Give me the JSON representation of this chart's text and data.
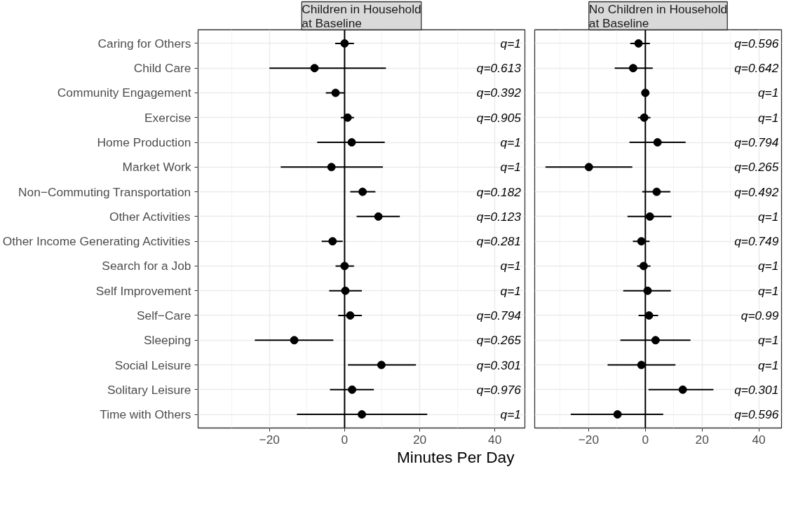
{
  "chart_data": [
    {
      "type": "scatter",
      "title": "Children in Household\nat Baseline",
      "xlabel": "Minutes Per Day",
      "orientation": "horizontal",
      "marker": "circle",
      "grid": true,
      "categories": [
        "Caring for Others",
        "Child Care",
        "Community Engagement",
        "Exercise",
        "Home Production",
        "Market Work",
        "Non−Commuting Transportation",
        "Other Activities",
        "Other Income Generating Activities",
        "Search for a Job",
        "Self Improvement",
        "Self−Care",
        "Sleeping",
        "Social Leisure",
        "Solitary Leisure",
        "Time with Others"
      ],
      "series": [
        {
          "color": "#000000",
          "values": [
            0,
            -8,
            -2.4,
            0.8,
            1.9,
            -3.5,
            4.8,
            9,
            -3.2,
            0,
            0.2,
            1.5,
            -13.4,
            9.8,
            2,
            4.6
          ],
          "errors": [
            [
              -2.5,
              2.5
            ],
            [
              -20,
              11
            ],
            [
              -5,
              0
            ],
            [
              -1,
              2.5
            ],
            [
              -7.3,
              10.7
            ],
            [
              -17,
              10.2
            ],
            [
              1.5,
              8.2
            ],
            [
              3.2,
              14.7
            ],
            [
              -6.1,
              -0.5
            ],
            [
              -2.4,
              2.5
            ],
            [
              -4.1,
              4.6
            ],
            [
              -1.7,
              4.6
            ],
            [
              -23.9,
              -3
            ],
            [
              0.9,
              19
            ],
            [
              -3.9,
              7.8
            ],
            [
              -12.7,
              22
            ]
          ]
        }
      ],
      "xlim": [
        -39,
        48
      ],
      "xticks": [
        {
          "value": -20,
          "label": "−20"
        },
        0,
        20,
        40
      ],
      "ref_lines": [
        {
          "axis": "x",
          "value": 0,
          "label": null,
          "color": "#000000"
        }
      ],
      "annotations": [
        "q=1",
        "q=0.613",
        "q=0.392",
        "q=0.905",
        "q=1",
        "q=1",
        "q=0.182",
        "q=0.123",
        "q=0.281",
        "q=1",
        "q=1",
        "q=0.794",
        "q=0.265",
        "q=0.301",
        "q=0.976",
        "q=1"
      ]
    },
    {
      "type": "scatter",
      "title": "No Children in Household\nat Baseline",
      "orientation": "horizontal",
      "marker": "circle",
      "grid": true,
      "tick_labels": "x",
      "categories": [
        null,
        null,
        null,
        null,
        null,
        null,
        null,
        null,
        null,
        null,
        null,
        null,
        null,
        null,
        null,
        null
      ],
      "series": [
        {
          "color": "#000000",
          "values": [
            -2.4,
            -4.3,
            0,
            -0.4,
            4.3,
            -19.9,
            4,
            1.6,
            -1.4,
            -0.6,
            0.8,
            1.3,
            3.6,
            -1.4,
            13.2,
            -9.8
          ],
          "errors": [
            [
              -5.3,
              1.6
            ],
            [
              -10.8,
              2.6
            ],
            [
              -1,
              1
            ],
            [
              -2.6,
              1.8
            ],
            [
              -5.6,
              14.2
            ],
            [
              -35.2,
              -4.6
            ],
            [
              -1.1,
              8.8
            ],
            [
              -6.3,
              9.2
            ],
            [
              -4.4,
              1.5
            ],
            [
              -2.9,
              1.8
            ],
            [
              -7.8,
              9
            ],
            [
              -2.4,
              4.5
            ],
            [
              -8.8,
              15.9
            ],
            [
              -13.3,
              10.6
            ],
            [
              1.1,
              24
            ],
            [
              -26.3,
              6.3
            ]
          ]
        }
      ],
      "xlim": [
        -39,
        48
      ],
      "xticks": [
        {
          "value": -20,
          "label": "−20"
        },
        0,
        20,
        40
      ],
      "ref_lines": [
        {
          "axis": "x",
          "value": 0,
          "label": null,
          "color": "#000000"
        }
      ],
      "annotations": [
        "q=0.596",
        "q=0.642",
        "q=1",
        "q=1",
        "q=0.794",
        "q=0.265",
        "q=0.492",
        "q=1",
        "q=0.749",
        "q=1",
        "q=1",
        "q=0.99",
        "q=1",
        "q=1",
        "q=0.301",
        "q=0.596"
      ]
    }
  ]
}
